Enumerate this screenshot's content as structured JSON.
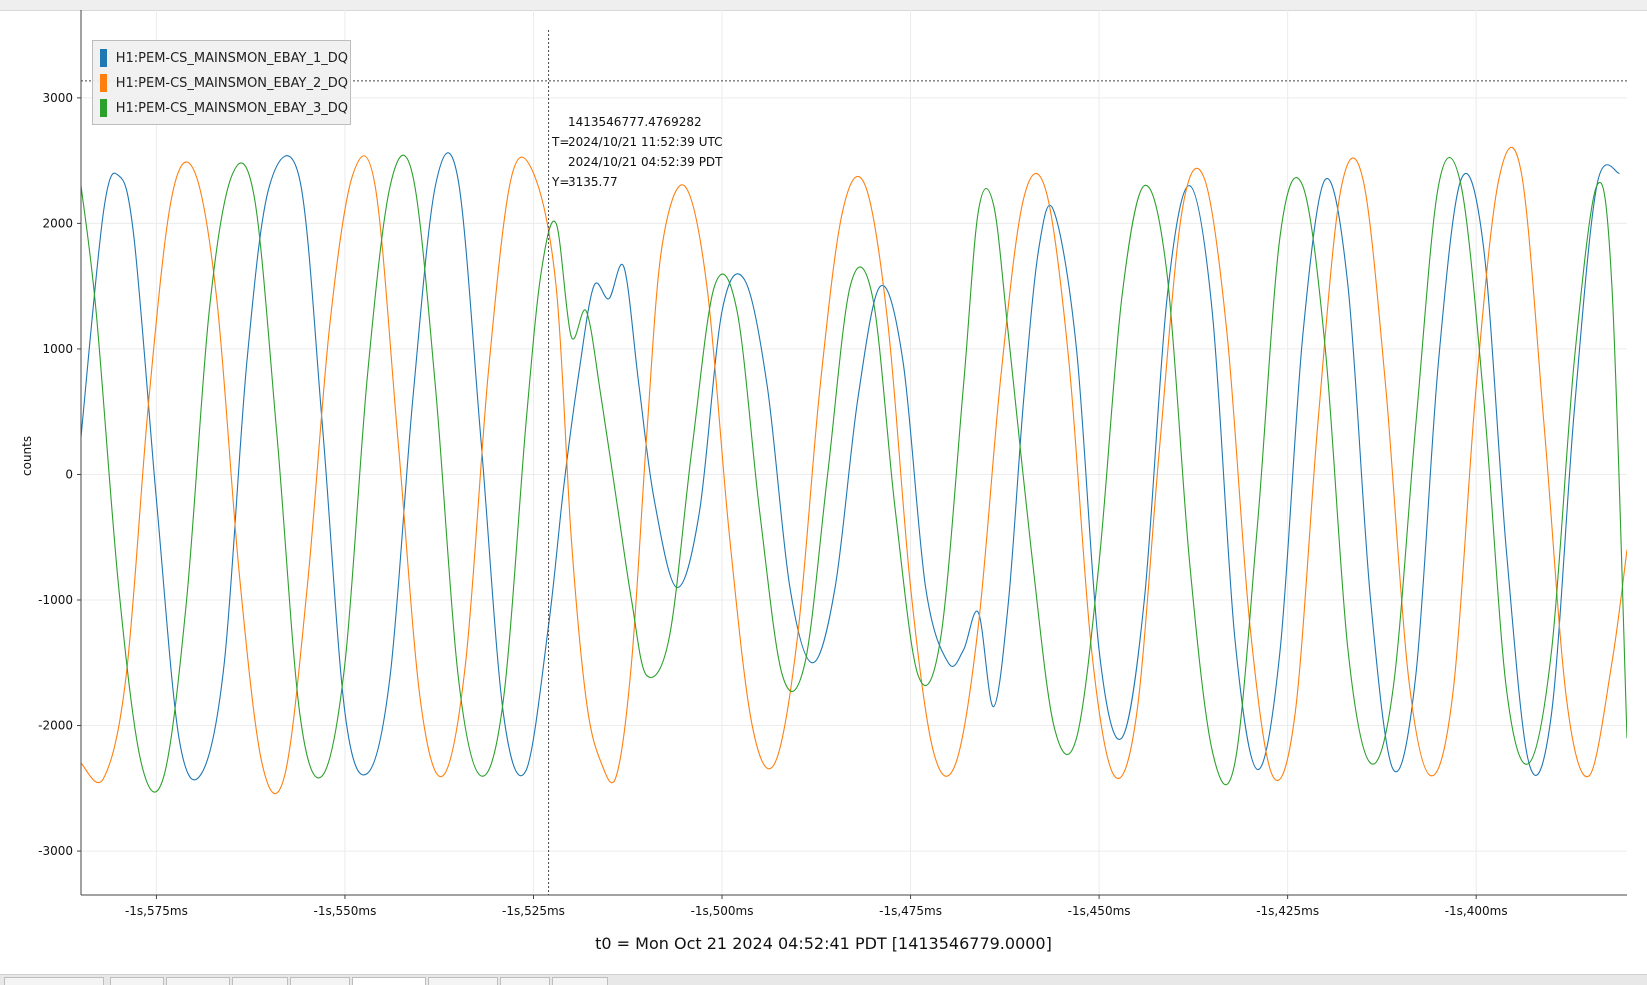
{
  "chart_data": {
    "type": "line",
    "title": "",
    "xlabel": "t0 = Mon Oct 21 2024 04:52:41 PDT [1413546779.0000]",
    "ylabel": "counts",
    "x_ticks": [
      "-1s,575ms",
      "-1s,550ms",
      "-1s,525ms",
      "-1s,500ms",
      "-1s,475ms",
      "-1s,450ms",
      "-1s,425ms",
      "-1s,400ms"
    ],
    "x_tick_values_ms": [
      -1575,
      -1550,
      -1525,
      -1500,
      -1475,
      -1450,
      -1425,
      -1400
    ],
    "y_ticks": [
      3000,
      2000,
      1000,
      0,
      -1000,
      -2000,
      -3000
    ],
    "xlim_ms": [
      -1585,
      -1380
    ],
    "ylim": [
      -3350,
      3700
    ],
    "grid": true,
    "legend_position": "top-left",
    "mains_frequency_hz": 60,
    "series": [
      {
        "name": "H1:PEM-CS_MAINSMON_EBAY_1_DQ",
        "color": "#1f77b4",
        "points": [
          [
            -1585,
            300
          ],
          [
            -1582,
            2100
          ],
          [
            -1580,
            2380
          ],
          [
            -1578,
            1900
          ],
          [
            -1575,
            -200
          ],
          [
            -1572,
            -2100
          ],
          [
            -1569,
            -2380
          ],
          [
            -1566,
            -1500
          ],
          [
            -1563,
            900
          ],
          [
            -1560,
            2300
          ],
          [
            -1556,
            2350
          ],
          [
            -1553,
            400
          ],
          [
            -1550,
            -1900
          ],
          [
            -1547,
            -2380
          ],
          [
            -1544,
            -1600
          ],
          [
            -1541,
            600
          ],
          [
            -1538,
            2300
          ],
          [
            -1535,
            2350
          ],
          [
            -1532,
            300
          ],
          [
            -1529,
            -1900
          ],
          [
            -1526,
            -2360
          ],
          [
            -1523,
            -1200
          ],
          [
            -1521,
            -100
          ],
          [
            -1519,
            800
          ],
          [
            -1517,
            1500
          ],
          [
            -1515,
            1400
          ],
          [
            -1513,
            1650
          ],
          [
            -1511,
            700
          ],
          [
            -1509,
            -200
          ],
          [
            -1506,
            -900
          ],
          [
            -1503,
            -300
          ],
          [
            -1500,
            1300
          ],
          [
            -1497,
            1550
          ],
          [
            -1494,
            700
          ],
          [
            -1491,
            -900
          ],
          [
            -1488,
            -1500
          ],
          [
            -1485,
            -900
          ],
          [
            -1482,
            600
          ],
          [
            -1479,
            1500
          ],
          [
            -1476,
            900
          ],
          [
            -1473,
            -900
          ],
          [
            -1470,
            -1500
          ],
          [
            -1468,
            -1400
          ],
          [
            -1466,
            -1100
          ],
          [
            -1464,
            -1850
          ],
          [
            -1462,
            -1000
          ],
          [
            -1460,
            600
          ],
          [
            -1458,
            1800
          ],
          [
            -1456,
            2100
          ],
          [
            -1453,
            1000
          ],
          [
            -1450,
            -1400
          ],
          [
            -1447,
            -2100
          ],
          [
            -1444,
            -1000
          ],
          [
            -1441,
            1400
          ],
          [
            -1438,
            2300
          ],
          [
            -1435,
            1300
          ],
          [
            -1432,
            -1300
          ],
          [
            -1429,
            -2350
          ],
          [
            -1426,
            -1400
          ],
          [
            -1423,
            1100
          ],
          [
            -1420,
            2350
          ],
          [
            -1417,
            1500
          ],
          [
            -1414,
            -1000
          ],
          [
            -1411,
            -2350
          ],
          [
            -1408,
            -1600
          ],
          [
            -1405,
            900
          ],
          [
            -1402,
            2350
          ],
          [
            -1399,
            1800
          ],
          [
            -1396,
            -600
          ],
          [
            -1393,
            -2300
          ],
          [
            -1390,
            -1900
          ],
          [
            -1387,
            500
          ],
          [
            -1384,
            2300
          ],
          [
            -1381,
            2400
          ]
        ]
      },
      {
        "name": "H1:PEM-CS_MAINSMON_EBAY_2_DQ",
        "color": "#ff7f0e",
        "points": [
          [
            -1585,
            -2300
          ],
          [
            -1582,
            -2420
          ],
          [
            -1579,
            -1600
          ],
          [
            -1576,
            600
          ],
          [
            -1573,
            2200
          ],
          [
            -1570,
            2420
          ],
          [
            -1567,
            1400
          ],
          [
            -1564,
            -800
          ],
          [
            -1561,
            -2300
          ],
          [
            -1558,
            -2400
          ],
          [
            -1555,
            -900
          ],
          [
            -1552,
            1200
          ],
          [
            -1549,
            2380
          ],
          [
            -1546,
            2300
          ],
          [
            -1543,
            300
          ],
          [
            -1540,
            -1800
          ],
          [
            -1537,
            -2400
          ],
          [
            -1534,
            -1500
          ],
          [
            -1531,
            800
          ],
          [
            -1528,
            2350
          ],
          [
            -1525,
            2400
          ],
          [
            -1522,
            1500
          ],
          [
            -1520,
            -500
          ],
          [
            -1518,
            -1800
          ],
          [
            -1516,
            -2300
          ],
          [
            -1514,
            -2400
          ],
          [
            -1512,
            -1500
          ],
          [
            -1510,
            300
          ],
          [
            -1508,
            1800
          ],
          [
            -1505,
            2300
          ],
          [
            -1502,
            1500
          ],
          [
            -1499,
            -500
          ],
          [
            -1496,
            -2000
          ],
          [
            -1493,
            -2300
          ],
          [
            -1490,
            -1300
          ],
          [
            -1487,
            700
          ],
          [
            -1484,
            2100
          ],
          [
            -1481,
            2300
          ],
          [
            -1478,
            1200
          ],
          [
            -1475,
            -900
          ],
          [
            -1472,
            -2200
          ],
          [
            -1469,
            -2300
          ],
          [
            -1466,
            -1200
          ],
          [
            -1463,
            800
          ],
          [
            -1460,
            2200
          ],
          [
            -1457,
            2250
          ],
          [
            -1454,
            900
          ],
          [
            -1451,
            -1400
          ],
          [
            -1448,
            -2400
          ],
          [
            -1445,
            -1900
          ],
          [
            -1442,
            200
          ],
          [
            -1439,
            2100
          ],
          [
            -1436,
            2350
          ],
          [
            -1433,
            1100
          ],
          [
            -1430,
            -1200
          ],
          [
            -1427,
            -2400
          ],
          [
            -1424,
            -1900
          ],
          [
            -1421,
            400
          ],
          [
            -1418,
            2250
          ],
          [
            -1415,
            2350
          ],
          [
            -1412,
            700
          ],
          [
            -1409,
            -1600
          ],
          [
            -1406,
            -2400
          ],
          [
            -1403,
            -1700
          ],
          [
            -1400,
            700
          ],
          [
            -1397,
            2350
          ],
          [
            -1394,
            2400
          ],
          [
            -1391,
            400
          ],
          [
            -1388,
            -1800
          ],
          [
            -1385,
            -2400
          ],
          [
            -1382,
            -1500
          ],
          [
            -1380,
            -600
          ]
        ]
      },
      {
        "name": "H1:PEM-CS_MAINSMON_EBAY_3_DQ",
        "color": "#2ca02c",
        "points": [
          [
            -1585,
            2300
          ],
          [
            -1583,
            1300
          ],
          [
            -1580,
            -900
          ],
          [
            -1577,
            -2300
          ],
          [
            -1574,
            -2400
          ],
          [
            -1571,
            -1000
          ],
          [
            -1568,
            1300
          ],
          [
            -1565,
            2380
          ],
          [
            -1562,
            2200
          ],
          [
            -1559,
            300
          ],
          [
            -1556,
            -1900
          ],
          [
            -1553,
            -2400
          ],
          [
            -1550,
            -1500
          ],
          [
            -1547,
            800
          ],
          [
            -1544,
            2300
          ],
          [
            -1541,
            2380
          ],
          [
            -1538,
            700
          ],
          [
            -1535,
            -1600
          ],
          [
            -1532,
            -2400
          ],
          [
            -1529,
            -1800
          ],
          [
            -1526,
            400
          ],
          [
            -1524,
            1600
          ],
          [
            -1522,
            2000
          ],
          [
            -1520,
            1100
          ],
          [
            -1518,
            1300
          ],
          [
            -1516,
            600
          ],
          [
            -1514,
            -200
          ],
          [
            -1512,
            -1000
          ],
          [
            -1510,
            -1600
          ],
          [
            -1507,
            -1300
          ],
          [
            -1504,
            200
          ],
          [
            -1501,
            1500
          ],
          [
            -1498,
            1300
          ],
          [
            -1495,
            -300
          ],
          [
            -1492,
            -1600
          ],
          [
            -1489,
            -1500
          ],
          [
            -1486,
            0
          ],
          [
            -1483,
            1500
          ],
          [
            -1480,
            1400
          ],
          [
            -1477,
            -300
          ],
          [
            -1474,
            -1600
          ],
          [
            -1471,
            -1300
          ],
          [
            -1468,
            700
          ],
          [
            -1466,
            2100
          ],
          [
            -1464,
            2150
          ],
          [
            -1462,
            1100
          ],
          [
            -1459,
            -600
          ],
          [
            -1456,
            -2000
          ],
          [
            -1453,
            -2100
          ],
          [
            -1450,
            -700
          ],
          [
            -1447,
            1400
          ],
          [
            -1444,
            2300
          ],
          [
            -1441,
            1600
          ],
          [
            -1438,
            -700
          ],
          [
            -1435,
            -2200
          ],
          [
            -1432,
            -2300
          ],
          [
            -1429,
            -400
          ],
          [
            -1426,
            1900
          ],
          [
            -1423,
            2300
          ],
          [
            -1420,
            1000
          ],
          [
            -1417,
            -1400
          ],
          [
            -1414,
            -2300
          ],
          [
            -1411,
            -1700
          ],
          [
            -1408,
            400
          ],
          [
            -1405,
            2300
          ],
          [
            -1402,
            2300
          ],
          [
            -1399,
            600
          ],
          [
            -1396,
            -1700
          ],
          [
            -1393,
            -2300
          ],
          [
            -1390,
            -1400
          ],
          [
            -1387,
            900
          ],
          [
            -1384,
            2300
          ],
          [
            -1382,
            1500
          ],
          [
            -1380,
            -2100
          ]
        ]
      }
    ],
    "cursor": {
      "gps": "1413546777.4769282",
      "t_prefix": "T=",
      "utc": "2024/10/21 11:52:39 UTC",
      "pdt": "2024/10/21 04:52:39 PDT",
      "y_text": "Y=",
      "y_value": "3135.77",
      "x_ms": -1523,
      "y": 3135.77
    }
  }
}
